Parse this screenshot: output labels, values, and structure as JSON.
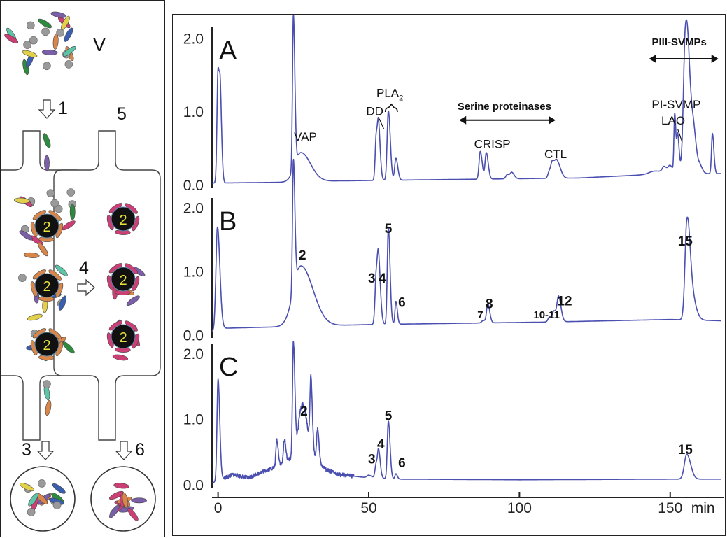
{
  "schematic": {
    "venom_label": "V",
    "step_labels": [
      "1",
      "2",
      "3",
      "4",
      "5",
      "6"
    ]
  },
  "colors": {
    "trace": "#4a4fb0",
    "axis": "#222222",
    "bead": "#111111",
    "bead_label": "#e8e23a",
    "venom_components": [
      "#cc3f74",
      "#3a5fb0",
      "#2e8a3e",
      "#e2d04a",
      "#d8864a",
      "#7a5fa8",
      "#5ec4a8",
      "#9a9a9a"
    ]
  },
  "chart_data": [
    {
      "type": "line",
      "panel": "A",
      "xlabel": "min",
      "ylabel": "",
      "xlim": [
        -2,
        167
      ],
      "ylim": [
        -0.05,
        2.15
      ],
      "xticks": [
        0,
        50,
        100,
        150
      ],
      "yticks": [
        0.0,
        1.0,
        2.0
      ],
      "series": [
        {
          "baseline": [
            [
              -2,
              0.02
            ],
            [
              20,
              0.03
            ],
            [
              40,
              0.05
            ],
            [
              60,
              0.06
            ],
            [
              80,
              0.07
            ],
            [
              100,
              0.08
            ],
            [
              120,
              0.09
            ],
            [
              140,
              0.13
            ],
            [
              160,
              0.15
            ],
            [
              167,
              0.15
            ]
          ],
          "peaks": [
            {
              "x": 0.0,
              "h": 1.55,
              "w": 0.35
            },
            {
              "x": 0.8,
              "h": 0.8,
              "w": 0.3
            },
            {
              "x": 25.0,
              "h": 2.1,
              "w": 0.3
            },
            {
              "x": 27.5,
              "h": 0.4,
              "w": 2.0
            },
            {
              "x": 52.5,
              "h": 0.62,
              "w": 0.35
            },
            {
              "x": 53.3,
              "h": 0.6,
              "w": 0.35
            },
            {
              "x": 56.5,
              "h": 0.95,
              "w": 0.4
            },
            {
              "x": 59.0,
              "h": 0.3,
              "w": 0.4
            },
            {
              "x": 87.0,
              "h": 0.38,
              "w": 0.4
            },
            {
              "x": 89.0,
              "h": 0.36,
              "w": 0.4
            },
            {
              "x": 96.0,
              "h": 0.06,
              "w": 0.5
            },
            {
              "x": 97.5,
              "h": 0.08,
              "w": 0.5
            },
            {
              "x": 110.0,
              "h": 0.1,
              "w": 0.5
            },
            {
              "x": 111.0,
              "h": 0.18,
              "w": 0.5
            },
            {
              "x": 112.5,
              "h": 0.22,
              "w": 0.7
            },
            {
              "x": 145.0,
              "h": 0.05,
              "w": 2.0
            },
            {
              "x": 148.0,
              "h": 0.08,
              "w": 0.6
            },
            {
              "x": 150.0,
              "h": 0.1,
              "w": 0.6
            },
            {
              "x": 151.5,
              "h": 0.8,
              "w": 0.25
            },
            {
              "x": 152.5,
              "h": 0.52,
              "w": 0.3
            },
            {
              "x": 154.0,
              "h": 0.08,
              "w": 0.5
            },
            {
              "x": 155.0,
              "h": 1.58,
              "w": 0.6
            },
            {
              "x": 156.2,
              "h": 0.95,
              "w": 0.9
            },
            {
              "x": 158.0,
              "h": 0.2,
              "w": 0.6
            },
            {
              "x": 160.0,
              "h": 0.08,
              "w": 0.5
            },
            {
              "x": 164.0,
              "h": 0.55,
              "w": 0.3
            }
          ]
        }
      ],
      "annotations": [
        {
          "text": "VAP",
          "x": 29,
          "y": 0.6
        },
        {
          "text": "DD",
          "x": 52,
          "y": 0.95
        },
        {
          "text": "PLA",
          "sub": "2",
          "x": 57,
          "y": 1.2
        },
        {
          "text": "Serine proteinases",
          "x": 95,
          "y": 1.02
        },
        {
          "text": "CRISP",
          "x": 91,
          "y": 0.5
        },
        {
          "text": "CTL",
          "x": 112,
          "y": 0.36
        },
        {
          "text": "PI-SVMP",
          "x": 152,
          "y": 1.04
        },
        {
          "text": "LAO",
          "x": 151,
          "y": 0.82
        },
        {
          "text": "PIII-SVMPs",
          "x": 153,
          "y": 1.9
        }
      ]
    },
    {
      "type": "line",
      "panel": "B",
      "xlabel": "min",
      "ylabel": "",
      "xlim": [
        -2,
        167
      ],
      "ylim": [
        -0.05,
        2.15
      ],
      "xticks": [
        0,
        50,
        100,
        150
      ],
      "yticks": [
        0.0,
        1.0,
        2.0
      ],
      "series": [
        {
          "baseline": [
            [
              -2,
              0.05
            ],
            [
              0,
              0.1
            ],
            [
              25,
              0.13
            ],
            [
              50,
              0.16
            ],
            [
              80,
              0.18
            ],
            [
              110,
              0.2
            ],
            [
              150,
              0.24
            ],
            [
              167,
              0.22
            ]
          ],
          "peaks": [
            {
              "x": -0.2,
              "h": 1.6,
              "w": 0.5
            },
            {
              "x": 25.0,
              "h": 2.05,
              "w": 0.3
            },
            {
              "x": 27.5,
              "h": 0.95,
              "w": 2.5
            },
            {
              "x": 52.5,
              "h": 0.78,
              "w": 0.4
            },
            {
              "x": 53.3,
              "h": 0.78,
              "w": 0.4
            },
            {
              "x": 56.5,
              "h": 1.52,
              "w": 0.35
            },
            {
              "x": 59.0,
              "h": 0.36,
              "w": 0.3
            },
            {
              "x": 88.0,
              "h": 0.04,
              "w": 0.5
            },
            {
              "x": 89.5,
              "h": 0.3,
              "w": 0.4
            },
            {
              "x": 110.0,
              "h": 0.08,
              "w": 0.5
            },
            {
              "x": 111.5,
              "h": 0.16,
              "w": 0.5
            },
            {
              "x": 113.0,
              "h": 0.38,
              "w": 0.5
            },
            {
              "x": 155.5,
              "h": 1.28,
              "w": 0.6
            },
            {
              "x": 156.5,
              "h": 0.5,
              "w": 1.0
            }
          ]
        }
      ],
      "annotations": [
        {
          "text": "2",
          "x": 28,
          "y": 1.18
        },
        {
          "text": "3",
          "x": 51,
          "y": 0.82
        },
        {
          "text": "4",
          "x": 54.5,
          "y": 0.82
        },
        {
          "text": "5",
          "x": 56.5,
          "y": 1.6
        },
        {
          "text": "6",
          "x": 61,
          "y": 0.44
        },
        {
          "text": "7",
          "x": 87,
          "y": 0.26
        },
        {
          "text": "8",
          "x": 90,
          "y": 0.42
        },
        {
          "text": "10-11",
          "x": 109,
          "y": 0.26
        },
        {
          "text": "12",
          "x": 115,
          "y": 0.46
        },
        {
          "text": "15",
          "x": 155,
          "y": 1.4
        }
      ]
    },
    {
      "type": "line",
      "panel": "C",
      "xlabel": "min",
      "ylabel": "",
      "xlim": [
        -2,
        167
      ],
      "ylim": [
        -0.05,
        2.15
      ],
      "xticks": [
        0,
        50,
        100,
        150
      ],
      "yticks": [
        0.0,
        1.0,
        2.0
      ],
      "series": [
        {
          "baseline": [
            [
              -2,
              0.02
            ],
            [
              5,
              0.15
            ],
            [
              10,
              0.1
            ],
            [
              15,
              0.2
            ],
            [
              20,
              0.28
            ],
            [
              25,
              0.42
            ],
            [
              27,
              0.75
            ],
            [
              30,
              0.6
            ],
            [
              33,
              0.35
            ],
            [
              36,
              0.22
            ],
            [
              40,
              0.15
            ],
            [
              50,
              0.1
            ],
            [
              60,
              0.08
            ],
            [
              100,
              0.07
            ],
            [
              150,
              0.08
            ],
            [
              167,
              0.08
            ]
          ],
          "noise": true,
          "peaks": [
            {
              "x": 0.0,
              "h": 1.55,
              "w": 0.35
            },
            {
              "x": 19.5,
              "h": 0.4,
              "w": 0.3
            },
            {
              "x": 22.0,
              "h": 0.35,
              "w": 0.3
            },
            {
              "x": 25.0,
              "h": 1.75,
              "w": 0.3
            },
            {
              "x": 27.5,
              "h": 0.3,
              "w": 0.8
            },
            {
              "x": 28.5,
              "h": 0.3,
              "w": 0.8
            },
            {
              "x": 30.8,
              "h": 1.05,
              "w": 0.3
            },
            {
              "x": 33.0,
              "h": 0.5,
              "w": 0.3
            },
            {
              "x": 50.0,
              "h": 0.04,
              "w": 0.6
            },
            {
              "x": 52.5,
              "h": 0.22,
              "w": 0.4
            },
            {
              "x": 53.3,
              "h": 0.35,
              "w": 0.35
            },
            {
              "x": 56.5,
              "h": 0.88,
              "w": 0.35
            },
            {
              "x": 59.0,
              "h": 0.08,
              "w": 0.3
            },
            {
              "x": 155.5,
              "h": 0.38,
              "w": 0.8
            }
          ]
        }
      ],
      "annotations": [
        {
          "text": "2",
          "x": 28.5,
          "y": 1.05
        },
        {
          "text": "3",
          "x": 51,
          "y": 0.32
        },
        {
          "text": "4",
          "x": 54,
          "y": 0.55
        },
        {
          "text": "5",
          "x": 56.5,
          "y": 0.98
        },
        {
          "text": "6",
          "x": 61,
          "y": 0.26
        },
        {
          "text": "15",
          "x": 155,
          "y": 0.46
        }
      ]
    }
  ],
  "panels": [
    {
      "letter": "A"
    },
    {
      "letter": "B"
    },
    {
      "letter": "C"
    }
  ],
  "x_axis": {
    "ticks": [
      "0",
      "50",
      "100",
      "150"
    ],
    "unit": "min"
  },
  "y_axis": {
    "ticks": [
      "0.0",
      "1.0",
      "2.0"
    ]
  }
}
